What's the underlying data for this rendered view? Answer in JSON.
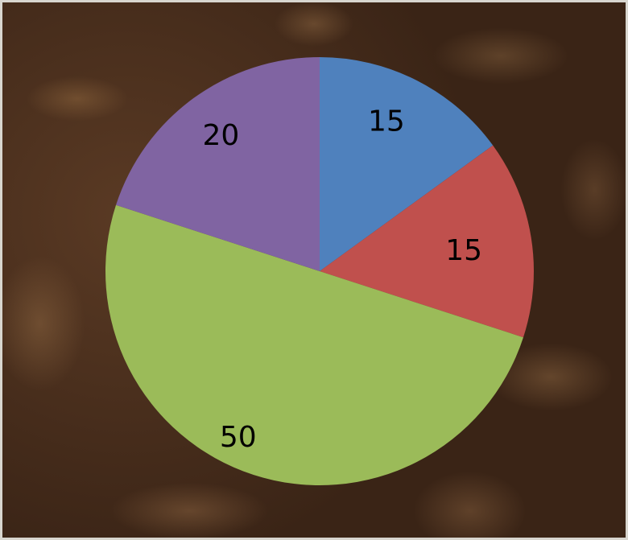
{
  "chart_data": {
    "type": "pie",
    "start_angle_deg": 0,
    "direction": "clockwise",
    "slices": [
      {
        "value": 15,
        "label": "15",
        "color": "#4f81bd"
      },
      {
        "value": 15,
        "label": "15",
        "color": "#c0504d"
      },
      {
        "value": 50,
        "label": "50",
        "color": "#9bbb59"
      },
      {
        "value": 20,
        "label": "20",
        "color": "#8064a2"
      }
    ]
  }
}
